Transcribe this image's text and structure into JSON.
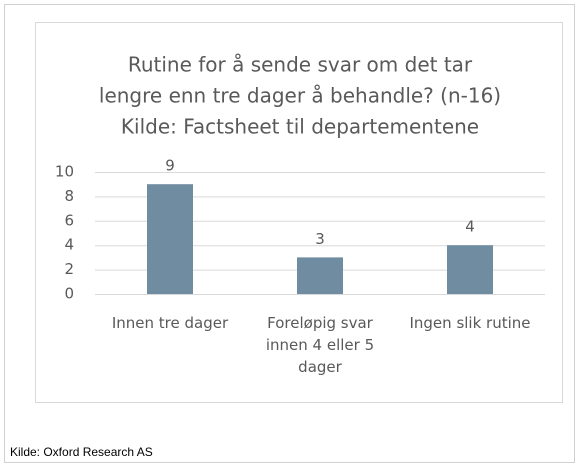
{
  "chart_data": {
    "type": "bar",
    "title": [
      "Rutine for å sende svar om det tar",
      "lengre enn tre dager å behandle? (n-16)",
      "Kilde: Factsheet til departementene"
    ],
    "categories": [
      "Innen tre dager",
      "Foreløpig svar innen 4 eller 5 dager",
      "Ingen slik rutine"
    ],
    "values": [
      9,
      3,
      4
    ],
    "color": "#6f8ca0",
    "ylim": [
      0,
      10
    ],
    "yticks": [
      0,
      2,
      4,
      6,
      8,
      10
    ],
    "grid": true
  },
  "footer": "Kilde: Oxford Research AS"
}
